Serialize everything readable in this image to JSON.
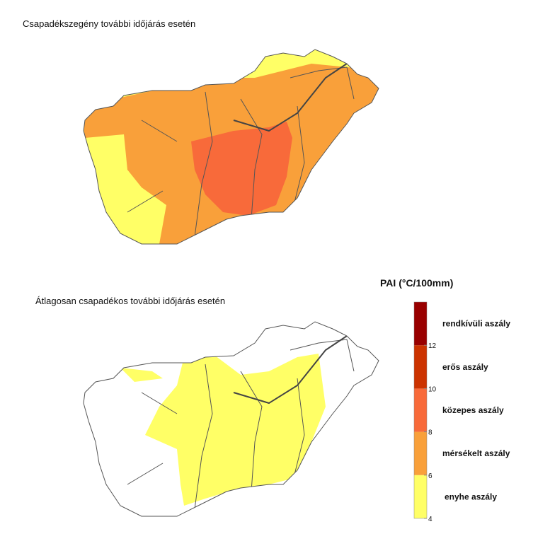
{
  "maps": [
    {
      "title": "Csapadékszegény további időjárás esetén"
    },
    {
      "title": "Átlagosan csapadékos további időjárás esetén"
    }
  ],
  "legend": {
    "title": "PAI (°C/100mm)",
    "ticks": [
      4,
      6,
      8,
      10,
      12
    ],
    "classes": [
      {
        "label": "enyhe aszály",
        "color": "#ffff66"
      },
      {
        "label": "mérsékelt aszály",
        "color": "#f9a03a"
      },
      {
        "label": "közepes aszály",
        "color": "#f86a3a"
      },
      {
        "label": "erős aszály",
        "color": "#cc3300"
      },
      {
        "label": "rendkívüli aszály",
        "color": "#990000"
      }
    ]
  }
}
